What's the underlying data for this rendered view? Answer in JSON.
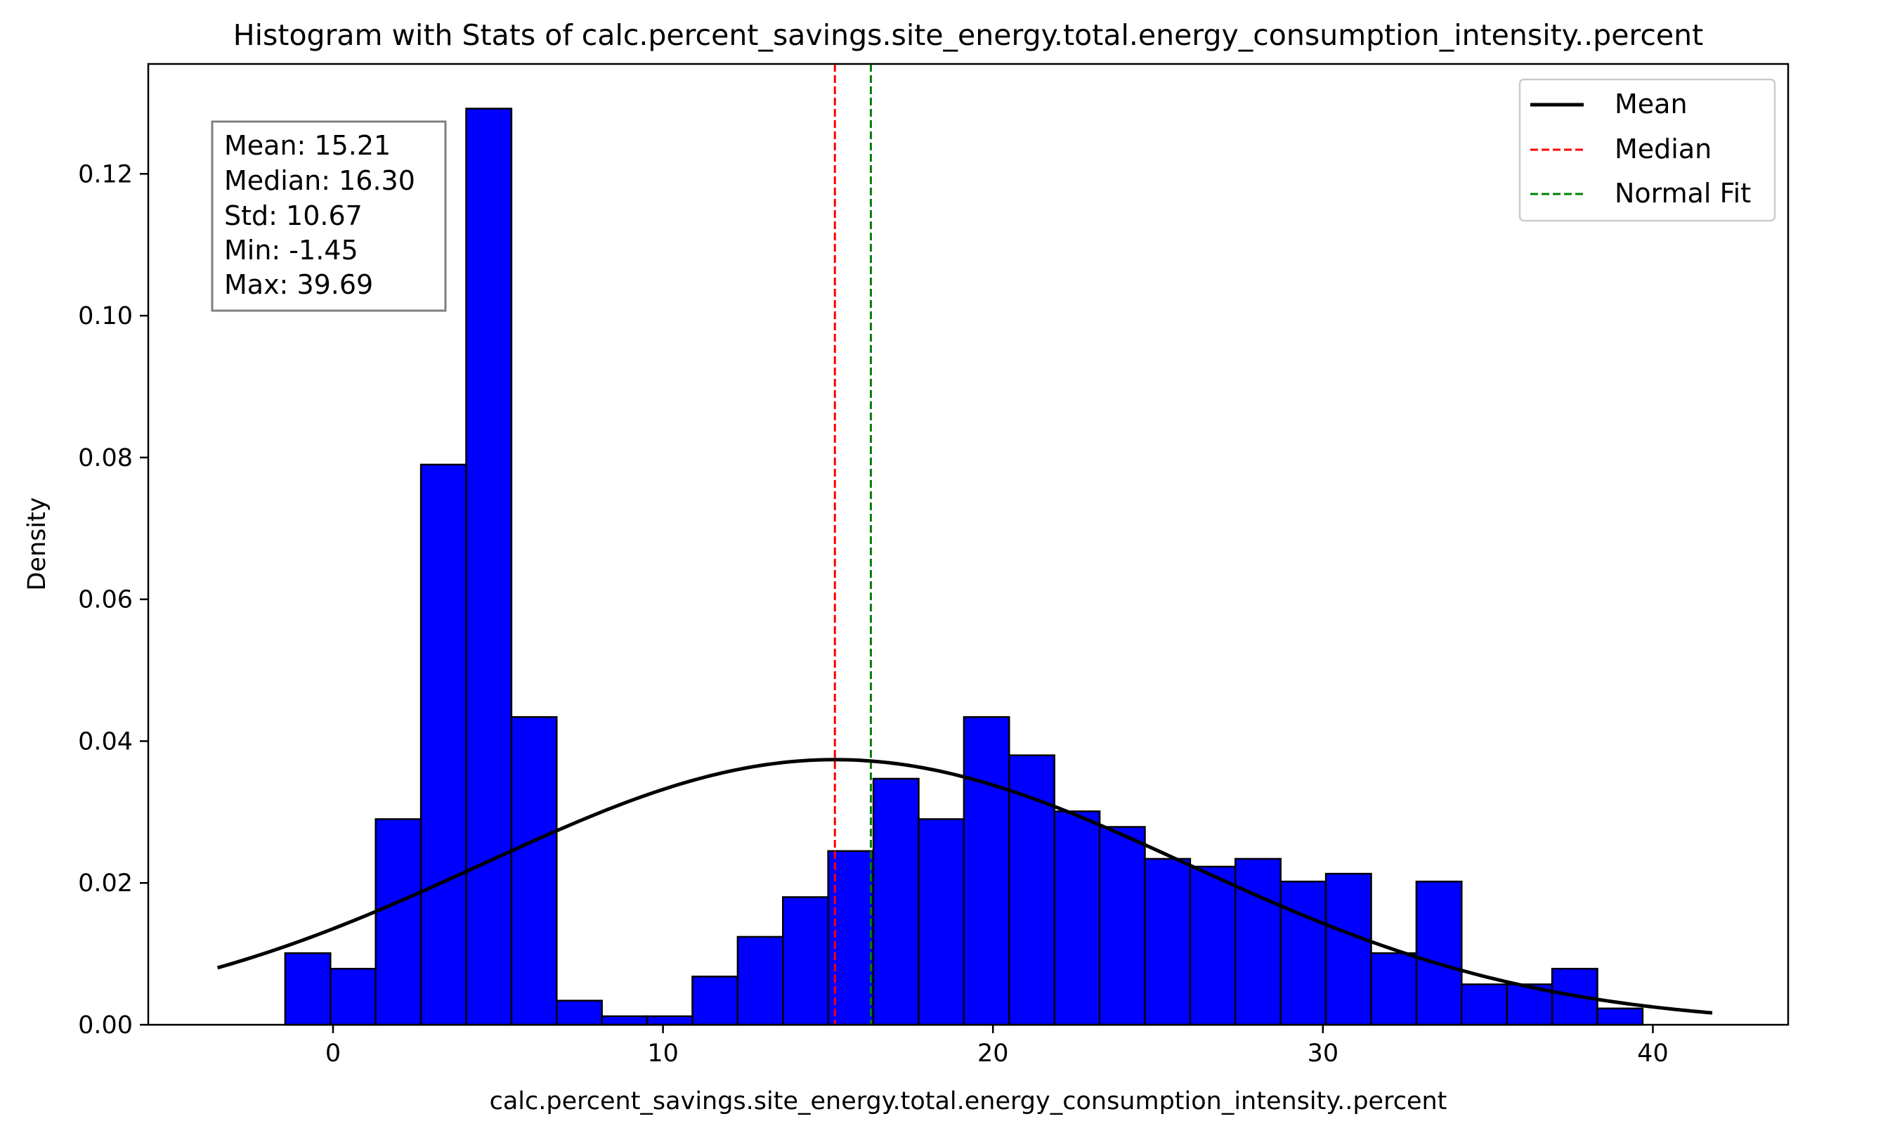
{
  "chart_data": {
    "type": "bar",
    "title": "Histogram with Stats of calc.percent_savings.site_energy.total.energy_consumption_intensity..percent",
    "xlabel": "calc.percent_savings.site_energy.total.energy_consumption_intensity..percent",
    "ylabel": "Density",
    "xlim": [
      -5.6,
      44.1
    ],
    "ylim": [
      0,
      0.1355
    ],
    "x_ticks": [
      0,
      10,
      20,
      30,
      40
    ],
    "x_tick_labels": [
      "0",
      "10",
      "20",
      "30",
      "40"
    ],
    "y_ticks": [
      0,
      0.02,
      0.04,
      0.06,
      0.08,
      0.1,
      0.12
    ],
    "y_tick_labels": [
      "0.00",
      "0.02",
      "0.04",
      "0.06",
      "0.08",
      "0.10",
      "0.12"
    ],
    "grid": false,
    "histogram": {
      "bin_start": -1.45,
      "bin_end": 39.69,
      "bin_count": 30,
      "densities": [
        0.0101,
        0.0079,
        0.029,
        0.079,
        0.1292,
        0.0434,
        0.0034,
        0.0012,
        0.0012,
        0.0068,
        0.0124,
        0.018,
        0.0245,
        0.0347,
        0.029,
        0.0434,
        0.038,
        0.0301,
        0.0279,
        0.0234,
        0.0223,
        0.0234,
        0.0202,
        0.0213,
        0.0101,
        0.0202,
        0.0057,
        0.0057,
        0.0079,
        0.0023
      ],
      "fill_color": "#0000ff",
      "edge_color": "#000000"
    },
    "normal_fit": {
      "mean": 15.21,
      "std": 10.67,
      "x_range": [
        -3.5,
        41.8
      ],
      "color": "#000000"
    },
    "reference_lines": [
      {
        "x": 15.21,
        "color": "#ff0000",
        "style": "dashed"
      },
      {
        "x": 16.3,
        "color": "#008000",
        "style": "dashed"
      }
    ],
    "legend": {
      "placement": "top-right",
      "entries": [
        {
          "label": "Mean",
          "color": "#000000",
          "style": "solid"
        },
        {
          "label": "Median",
          "color": "#ff0000",
          "style": "dashed"
        },
        {
          "label": "Normal Fit",
          "color": "#008000",
          "style": "dashed"
        }
      ]
    },
    "stats_box": {
      "placement": "top-left",
      "lines": [
        "Mean: 15.21",
        "Median: 16.30",
        "Std: 10.67",
        "Min: -1.45",
        "Max: 39.69"
      ]
    }
  }
}
